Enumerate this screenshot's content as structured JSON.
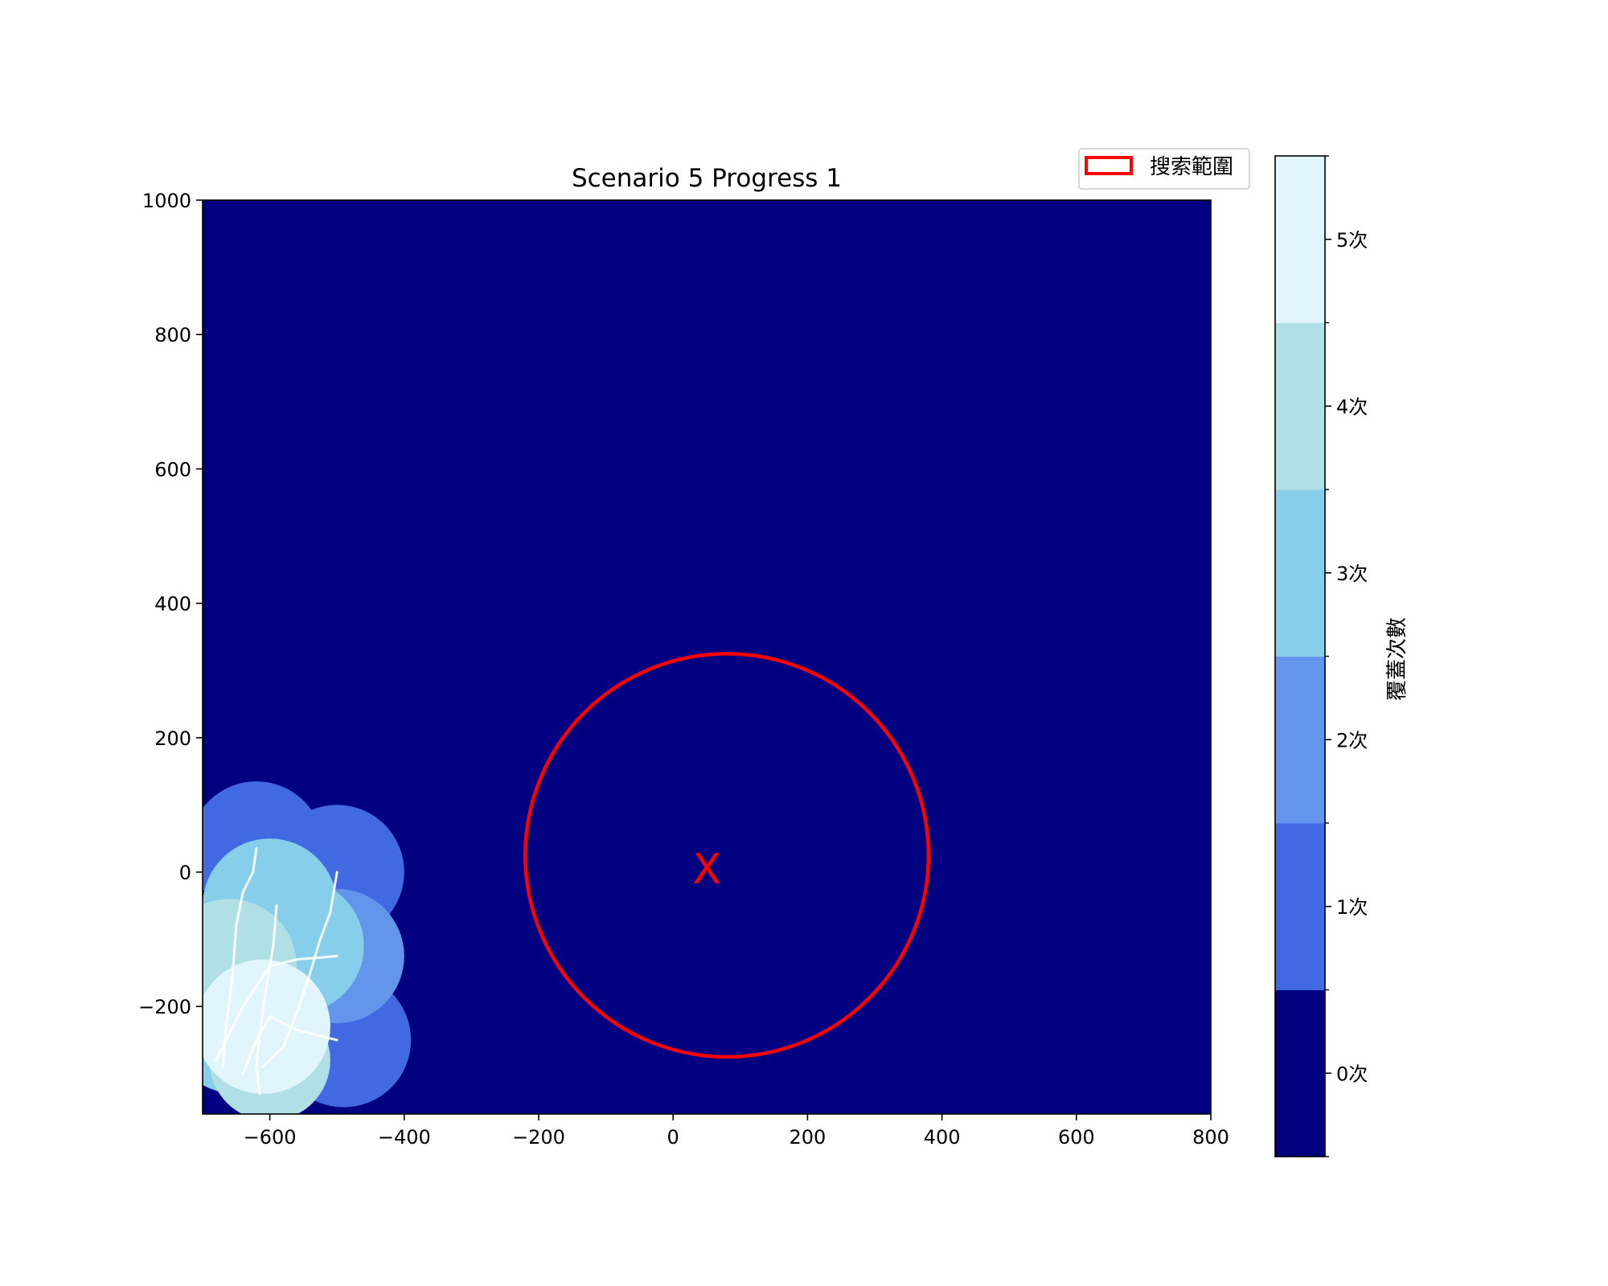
{
  "chart_data": {
    "type": "heatmap",
    "title": "Scenario 5 Progress 1",
    "xlabel": "",
    "ylabel": "",
    "xlim": [
      -700,
      800
    ],
    "ylim": [
      -360,
      1000
    ],
    "xticks": [
      -600,
      -400,
      -200,
      0,
      200,
      400,
      600,
      800
    ],
    "xtick_labels": [
      "−600",
      "−400",
      "−200",
      "0",
      "200",
      "400",
      "600",
      "800"
    ],
    "yticks": [
      -200,
      0,
      200,
      400,
      600,
      800,
      1000
    ],
    "ytick_labels": [
      "−200",
      "0",
      "200",
      "400",
      "600",
      "800",
      "1000"
    ],
    "grid": false,
    "colorbar": {
      "label": "覆蓋次數",
      "levels": [
        0,
        1,
        2,
        3,
        4,
        5
      ],
      "tick_labels": [
        "0次",
        "1次",
        "2次",
        "3次",
        "4次",
        "5次"
      ],
      "colors": [
        "#000080",
        "#4169e1",
        "#6495ed",
        "#87ceeb",
        "#b0e0e6",
        "#e0f6fc"
      ]
    },
    "search_area": {
      "legend_label": "搜索範圍",
      "center": [
        80,
        25
      ],
      "radius": 300,
      "color": "#ff0000"
    },
    "target_marker": {
      "label": "X",
      "position": [
        50,
        0
      ],
      "color": "#ff0000"
    },
    "coverage_circles": [
      {
        "center": [
          -620,
          35
        ],
        "radius": 100,
        "count": 1
      },
      {
        "center": [
          -500,
          0
        ],
        "radius": 100,
        "count": 1
      },
      {
        "center": [
          -490,
          -250
        ],
        "radius": 100,
        "count": 1
      },
      {
        "center": [
          -600,
          -50
        ],
        "radius": 100,
        "count": 3
      },
      {
        "center": [
          -500,
          -125
        ],
        "radius": 100,
        "count": 2
      },
      {
        "center": [
          -560,
          -110
        ],
        "radius": 100,
        "count": 3
      },
      {
        "center": [
          -650,
          -230
        ],
        "radius": 100,
        "count": 3
      },
      {
        "center": [
          -600,
          -280
        ],
        "radius": 90,
        "count": 4
      },
      {
        "center": [
          -660,
          -140
        ],
        "radius": 100,
        "count": 4
      },
      {
        "center": [
          -610,
          -230
        ],
        "radius": 100,
        "count": 5
      }
    ],
    "paths": [
      {
        "points": [
          [
            -620,
            35
          ],
          [
            -625,
            0
          ],
          [
            -640,
            -30
          ],
          [
            -650,
            -80
          ],
          [
            -655,
            -150
          ],
          [
            -665,
            -230
          ],
          [
            -670,
            -290
          ]
        ]
      },
      {
        "points": [
          [
            -500,
            0
          ],
          [
            -510,
            -60
          ],
          [
            -525,
            -100
          ],
          [
            -540,
            -150
          ],
          [
            -560,
            -210
          ],
          [
            -580,
            -260
          ],
          [
            -610,
            -290
          ]
        ]
      },
      {
        "points": [
          [
            -590,
            -50
          ],
          [
            -595,
            -110
          ],
          [
            -605,
            -170
          ],
          [
            -615,
            -240
          ],
          [
            -620,
            -290
          ],
          [
            -615,
            -330
          ]
        ]
      },
      {
        "points": [
          [
            -500,
            -125
          ],
          [
            -560,
            -130
          ],
          [
            -600,
            -140
          ],
          [
            -640,
            -200
          ],
          [
            -680,
            -280
          ]
        ]
      },
      {
        "points": [
          [
            -500,
            -250
          ],
          [
            -560,
            -235
          ],
          [
            -600,
            -215
          ],
          [
            -620,
            -250
          ],
          [
            -640,
            -300
          ]
        ]
      }
    ],
    "legend_position": "upper-right"
  }
}
